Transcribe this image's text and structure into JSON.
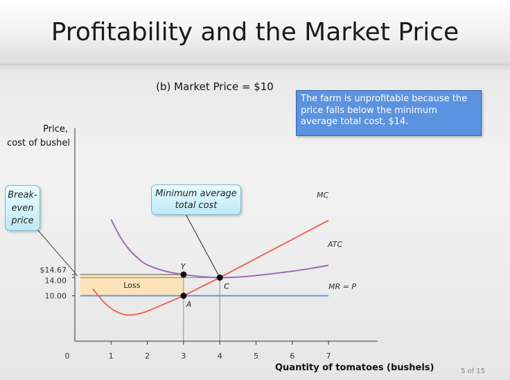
{
  "slide": {
    "title": "Profitability and the Market Price",
    "subtitle": "(b)  Market Price = $10",
    "note": "The farm is unprofitable because the price falls below the minimum average total cost, $14.",
    "callout_min_atc": "Minimum average total cost",
    "callout_breakeven": "Break-even price",
    "page_number": "5 of 15"
  },
  "chart_data": {
    "type": "line",
    "ylabel": "Price, cost of bushel",
    "xlabel": "Quantity of tomatoes (bushels)",
    "xlim": [
      0,
      7.5
    ],
    "ylim": [
      0,
      30
    ],
    "x_ticks": [
      "0",
      "1",
      "2",
      "3",
      "4",
      "5",
      "6",
      "7"
    ],
    "y_ticks": [
      {
        "value": 14.67,
        "label": "$14.67"
      },
      {
        "value": 14.0,
        "label": "14.00"
      },
      {
        "value": 10.0,
        "label": "10.00"
      }
    ],
    "series": [
      {
        "name": "MC",
        "color": "#f0645a",
        "x": [
          0.5,
          0.8,
          1.0,
          1.2,
          1.4,
          1.6,
          1.8,
          2.0,
          2.5,
          3.0,
          3.5,
          4.0,
          4.5,
          5.0,
          5.5,
          6.0,
          6.5,
          7.0
        ],
        "y": [
          11.5,
          8.6,
          7.2,
          6.3,
          5.8,
          5.8,
          6.1,
          6.6,
          8.3,
          10.0,
          12.0,
          14.0,
          16.1,
          18.2,
          20.3,
          22.4,
          24.5,
          26.6
        ]
      },
      {
        "name": "ATC",
        "color": "#9b6cb8",
        "x": [
          1.0,
          1.25,
          1.5,
          1.75,
          2.0,
          2.5,
          3.0,
          3.5,
          4.0,
          4.5,
          5.0,
          5.5,
          6.0,
          6.5,
          7.0
        ],
        "y": [
          26.8,
          23.0,
          20.2,
          18.2,
          16.8,
          15.4,
          14.67,
          14.2,
          14.0,
          14.1,
          14.45,
          14.9,
          15.4,
          16.0,
          16.7
        ]
      },
      {
        "name": "MR = P",
        "color": "#6d93c4",
        "x": [
          0.15,
          7.0
        ],
        "y": [
          10.0,
          10.0
        ]
      }
    ],
    "points": [
      {
        "label": "Y",
        "x": 3,
        "y": 14.67
      },
      {
        "label": "C",
        "x": 4,
        "y": 14.0
      },
      {
        "label": "A",
        "x": 3,
        "y": 10.0
      }
    ],
    "shaded_region": {
      "label": "Loss",
      "x": [
        0.15,
        3
      ],
      "y": [
        10.0,
        14.67
      ],
      "color": "#fde3b8"
    }
  }
}
